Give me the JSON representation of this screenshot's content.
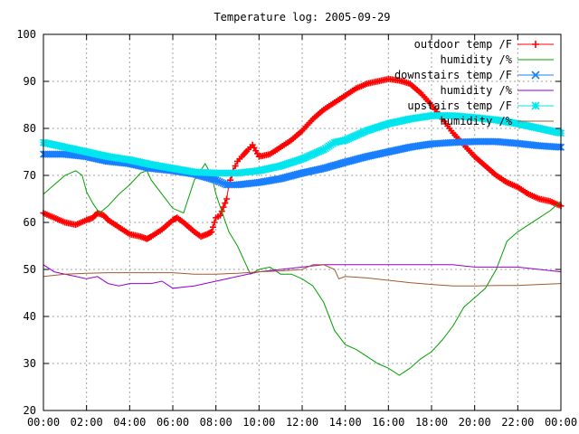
{
  "chart_data": {
    "type": "line",
    "title": "Temperature log: 2005-09-29",
    "xlabel": "",
    "ylabel": "",
    "xlim": [
      0,
      24
    ],
    "ylim": [
      20,
      100
    ],
    "x_tick_labels": [
      "00:00",
      "02:00",
      "04:00",
      "06:00",
      "08:00",
      "10:00",
      "12:00",
      "14:00",
      "16:00",
      "18:00",
      "20:00",
      "22:00",
      "00:00"
    ],
    "y_tick_labels": [
      "20",
      "30",
      "40",
      "50",
      "60",
      "70",
      "80",
      "90",
      "100"
    ],
    "grid": true,
    "legend_position": "top-right",
    "series": [
      {
        "name": "outdoor temp /F",
        "color": "#ff0000",
        "marker": "plus",
        "points": [
          [
            0,
            62
          ],
          [
            0.5,
            61
          ],
          [
            1,
            60
          ],
          [
            1.5,
            59.5
          ],
          [
            2,
            60.5
          ],
          [
            2.3,
            61
          ],
          [
            2.5,
            62
          ],
          [
            2.8,
            61.5
          ],
          [
            3,
            60.5
          ],
          [
            3.5,
            59
          ],
          [
            4,
            57.5
          ],
          [
            4.5,
            57
          ],
          [
            4.8,
            56.5
          ],
          [
            5,
            57
          ],
          [
            5.5,
            58.5
          ],
          [
            6,
            60.5
          ],
          [
            6.2,
            61
          ],
          [
            6.5,
            60
          ],
          [
            7,
            58
          ],
          [
            7.3,
            57
          ],
          [
            7.6,
            57.5
          ],
          [
            7.8,
            58
          ],
          [
            8,
            61
          ],
          [
            8.2,
            61.5
          ],
          [
            8.5,
            65
          ],
          [
            8.6,
            68
          ],
          [
            8.8,
            71
          ],
          [
            9,
            73
          ],
          [
            9.2,
            74
          ],
          [
            9.5,
            75.5
          ],
          [
            9.7,
            76.5
          ],
          [
            10,
            74
          ],
          [
            10.5,
            74.5
          ],
          [
            11,
            76
          ],
          [
            11.5,
            77.5
          ],
          [
            12,
            79.5
          ],
          [
            12.5,
            82
          ],
          [
            13,
            84
          ],
          [
            13.5,
            85.5
          ],
          [
            14,
            87
          ],
          [
            14.5,
            88.5
          ],
          [
            15,
            89.5
          ],
          [
            15.5,
            90
          ],
          [
            16,
            90.5
          ],
          [
            16.5,
            90.2
          ],
          [
            17,
            89.5
          ],
          [
            17.5,
            87.5
          ],
          [
            18,
            85
          ],
          [
            18.5,
            82
          ],
          [
            19,
            79
          ],
          [
            19.5,
            76.5
          ],
          [
            20,
            74
          ],
          [
            20.5,
            72
          ],
          [
            21,
            70
          ],
          [
            21.5,
            68.5
          ],
          [
            22,
            67.5
          ],
          [
            22.5,
            66
          ],
          [
            23,
            65
          ],
          [
            23.5,
            64.5
          ],
          [
            24,
            63.5
          ]
        ]
      },
      {
        "name": "humidity /%",
        "color": "#00a000",
        "marker": "none",
        "points": [
          [
            0,
            66
          ],
          [
            0.5,
            68
          ],
          [
            1,
            70
          ],
          [
            1.5,
            71
          ],
          [
            1.8,
            70
          ],
          [
            2,
            66.5
          ],
          [
            2.3,
            64
          ],
          [
            2.6,
            62
          ],
          [
            3,
            63.5
          ],
          [
            3.5,
            66
          ],
          [
            4,
            68
          ],
          [
            4.5,
            70.5
          ],
          [
            4.8,
            71
          ],
          [
            5,
            69
          ],
          [
            5.5,
            66
          ],
          [
            6,
            63
          ],
          [
            6.5,
            62
          ],
          [
            7,
            69
          ],
          [
            7.5,
            72.5
          ],
          [
            7.8,
            70
          ],
          [
            8,
            66
          ],
          [
            8.3,
            62
          ],
          [
            8.6,
            58
          ],
          [
            9,
            55
          ],
          [
            9.3,
            52
          ],
          [
            9.6,
            49
          ],
          [
            10,
            50
          ],
          [
            10.5,
            50.5
          ],
          [
            11,
            49
          ],
          [
            11.5,
            49
          ],
          [
            12,
            48
          ],
          [
            12.5,
            46.5
          ],
          [
            13,
            43
          ],
          [
            13.5,
            37
          ],
          [
            14,
            34
          ],
          [
            14.5,
            33
          ],
          [
            15,
            31.5
          ],
          [
            15.5,
            30
          ],
          [
            16,
            29
          ],
          [
            16.5,
            27.5
          ],
          [
            17,
            29
          ],
          [
            17.5,
            31
          ],
          [
            18,
            32.5
          ],
          [
            18.5,
            35
          ],
          [
            19,
            38
          ],
          [
            19.5,
            42
          ],
          [
            20,
            44
          ],
          [
            20.5,
            46
          ],
          [
            21,
            50
          ],
          [
            21.5,
            56
          ],
          [
            22,
            58
          ],
          [
            22.5,
            59.5
          ],
          [
            23,
            61
          ],
          [
            23.5,
            62.5
          ],
          [
            24,
            64.5
          ]
        ]
      },
      {
        "name": "downstairs temp /F",
        "color": "#1a7fff",
        "marker": "cross",
        "points": [
          [
            0,
            74.5
          ],
          [
            1,
            74.5
          ],
          [
            2,
            74
          ],
          [
            3,
            73
          ],
          [
            4,
            72.5
          ],
          [
            5,
            71.5
          ],
          [
            6,
            71
          ],
          [
            7,
            70.3
          ],
          [
            8,
            69
          ],
          [
            8.5,
            68
          ],
          [
            9,
            68
          ],
          [
            10,
            68.5
          ],
          [
            11,
            69.3
          ],
          [
            12,
            70.5
          ],
          [
            13,
            71.5
          ],
          [
            14,
            72.8
          ],
          [
            15,
            74
          ],
          [
            16,
            75
          ],
          [
            17,
            76
          ],
          [
            18,
            76.7
          ],
          [
            19,
            77
          ],
          [
            20,
            77.2
          ],
          [
            21,
            77.2
          ],
          [
            22,
            76.8
          ],
          [
            23,
            76.3
          ],
          [
            24,
            76
          ]
        ]
      },
      {
        "name": "humidity /%",
        "color": "#9400d3",
        "marker": "none",
        "points": [
          [
            0,
            51
          ],
          [
            0.5,
            49.5
          ],
          [
            1,
            49
          ],
          [
            1.5,
            48.5
          ],
          [
            2,
            48
          ],
          [
            2.5,
            48.5
          ],
          [
            3,
            47
          ],
          [
            3.5,
            46.5
          ],
          [
            4,
            47
          ],
          [
            5,
            47
          ],
          [
            5.5,
            47.5
          ],
          [
            6,
            46
          ],
          [
            7,
            46.5
          ],
          [
            8,
            47.5
          ],
          [
            9,
            48.5
          ],
          [
            10,
            49.5
          ],
          [
            11,
            50
          ],
          [
            12,
            50.5
          ],
          [
            13,
            51
          ],
          [
            14,
            51
          ],
          [
            15,
            51
          ],
          [
            16,
            51
          ],
          [
            17,
            51
          ],
          [
            18,
            51
          ],
          [
            19,
            51
          ],
          [
            20,
            50.5
          ],
          [
            21,
            50.5
          ],
          [
            22,
            50.5
          ],
          [
            23,
            50
          ],
          [
            24,
            49.5
          ]
        ]
      },
      {
        "name": "upstairs temp /F",
        "color": "#00e5ee",
        "marker": "star",
        "points": [
          [
            0,
            77
          ],
          [
            1,
            76
          ],
          [
            2,
            75
          ],
          [
            3,
            74
          ],
          [
            4,
            73.3
          ],
          [
            5,
            72.3
          ],
          [
            6,
            71.5
          ],
          [
            7,
            70.7
          ],
          [
            8,
            70.5
          ],
          [
            9,
            70.5
          ],
          [
            10,
            71
          ],
          [
            11,
            72
          ],
          [
            12,
            73.5
          ],
          [
            13,
            75.5
          ],
          [
            13.5,
            77
          ],
          [
            14,
            77.5
          ],
          [
            15,
            79.5
          ],
          [
            16,
            81
          ],
          [
            17,
            82
          ],
          [
            18,
            82.7
          ],
          [
            19,
            82.7
          ],
          [
            20,
            82.3
          ],
          [
            21,
            81.8
          ],
          [
            22,
            81
          ],
          [
            23,
            80
          ],
          [
            24,
            79
          ]
        ]
      },
      {
        "name": "humidity /%",
        "color": "#a05a2c",
        "marker": "none",
        "points": [
          [
            0,
            48.5
          ],
          [
            1,
            49
          ],
          [
            2,
            49.2
          ],
          [
            3,
            49.3
          ],
          [
            4,
            49.3
          ],
          [
            5,
            49.3
          ],
          [
            6,
            49.3
          ],
          [
            7,
            49
          ],
          [
            8,
            49
          ],
          [
            9,
            49.2
          ],
          [
            10,
            49.5
          ],
          [
            11,
            49.7
          ],
          [
            12,
            50
          ],
          [
            12.5,
            51
          ],
          [
            13,
            51
          ],
          [
            13.5,
            50
          ],
          [
            13.7,
            48
          ],
          [
            14,
            48.5
          ],
          [
            15,
            48.2
          ],
          [
            16,
            47.7
          ],
          [
            17,
            47.2
          ],
          [
            18,
            46.8
          ],
          [
            19,
            46.5
          ],
          [
            20,
            46.5
          ],
          [
            21,
            46.6
          ],
          [
            22,
            46.6
          ],
          [
            23,
            46.8
          ],
          [
            24,
            47
          ]
        ]
      }
    ]
  }
}
